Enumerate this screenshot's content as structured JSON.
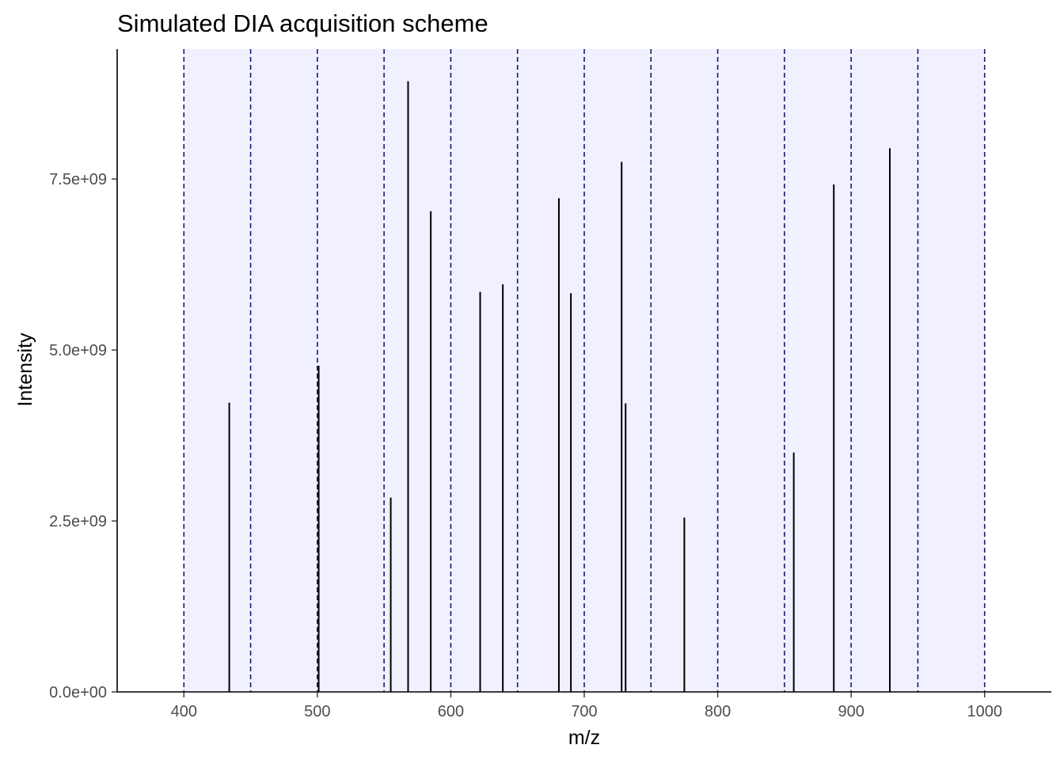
{
  "chart_data": {
    "type": "bar",
    "title": "Simulated DIA acquisition scheme",
    "xlabel": "m/z",
    "ylabel": "Intensity",
    "xlim": [
      350,
      1050
    ],
    "ylim": [
      0,
      9400000000
    ],
    "x_ticks": [
      400,
      500,
      600,
      700,
      800,
      900,
      1000
    ],
    "x_tick_labels": [
      "400",
      "500",
      "600",
      "700",
      "800",
      "900",
      "1000"
    ],
    "y_ticks": [
      0,
      2500000000,
      5000000000,
      7500000000
    ],
    "y_tick_labels": [
      "0.0e+00",
      "2.5e+09",
      "5.0e+09",
      "7.5e+09"
    ],
    "grid": false,
    "window_shading": {
      "from": 400,
      "to": 1000,
      "color": "#f0f0fe"
    },
    "window_boundaries": [
      400,
      450,
      500,
      550,
      600,
      650,
      700,
      750,
      800,
      850,
      900,
      950,
      1000
    ],
    "boundary_color": "#191970",
    "peak_color": "#000000",
    "series": [
      {
        "x": [
          434,
          501,
          555,
          568,
          585,
          622,
          639,
          681,
          690,
          728,
          731,
          775,
          857,
          887,
          929
        ],
        "values": [
          4230000000,
          4770000000,
          2840000000,
          8930000000,
          7030000000,
          5850000000,
          5960000000,
          7220000000,
          5830000000,
          7750000000,
          4220000000,
          2550000000,
          3500000000,
          7420000000,
          7950000000
        ]
      }
    ]
  }
}
